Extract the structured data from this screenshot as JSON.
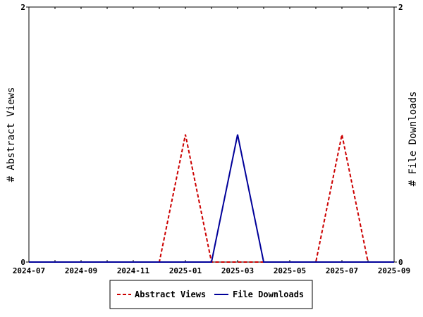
{
  "chart_data": {
    "type": "line",
    "x": [
      "2024-07",
      "2024-08",
      "2024-09",
      "2024-10",
      "2024-11",
      "2024-12",
      "2025-01",
      "2025-02",
      "2025-03",
      "2025-04",
      "2025-05",
      "2025-06",
      "2025-07",
      "2025-08",
      "2025-09"
    ],
    "x_tick_labels": [
      "2024-07",
      "2024-09",
      "2024-11",
      "2025-01",
      "2025-03",
      "2025-05",
      "2025-07",
      "2025-09"
    ],
    "series": [
      {
        "name": "Abstract Views",
        "axis": "left",
        "color": "#cc0000",
        "dash": "dashed",
        "values": [
          0,
          0,
          0,
          0,
          0,
          0,
          1,
          0,
          0,
          0,
          0,
          0,
          1,
          0,
          0
        ]
      },
      {
        "name": "File Downloads",
        "axis": "right",
        "color": "#000099",
        "dash": "solid",
        "values": [
          0,
          0,
          0,
          0,
          0,
          0,
          0,
          0,
          1,
          0,
          0,
          0,
          0,
          0,
          0
        ]
      }
    ],
    "y_left": {
      "label": "# Abstract Views",
      "ticks": [
        "0",
        "2"
      ],
      "range": [
        0,
        2
      ]
    },
    "y_right": {
      "label": "# File Downloads",
      "ticks": [
        "0",
        "2"
      ],
      "range": [
        0,
        2
      ]
    },
    "legend_placement": "bottom-center",
    "grid": false
  }
}
